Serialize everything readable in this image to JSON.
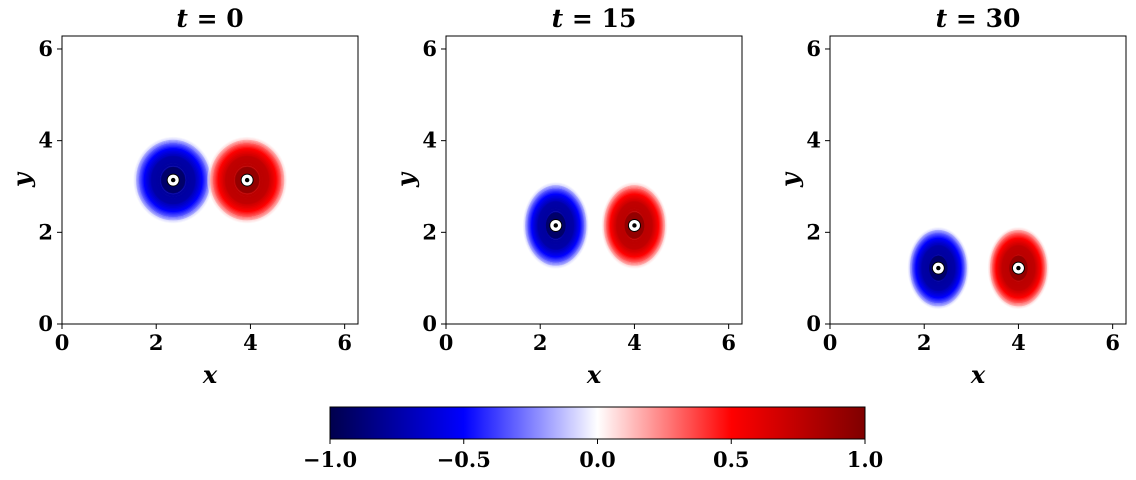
{
  "chart_data": {
    "type": "contour",
    "panels": [
      {
        "title_var": "t",
        "title_eq": " = ",
        "title_value": "0",
        "xlabel": "x",
        "ylabel": "y",
        "xlim": [
          0,
          6.2832
        ],
        "ylim": [
          0,
          6.2832
        ],
        "xticks": [
          "0",
          "2",
          "4",
          "6"
        ],
        "yticks": [
          "0",
          "2",
          "4",
          "6"
        ],
        "vortices": [
          {
            "x": 2.36,
            "y": 3.14,
            "sign": -1,
            "rx": 0.85,
            "ry": 0.95
          },
          {
            "x": 3.93,
            "y": 3.14,
            "sign": 1,
            "rx": 0.85,
            "ry": 0.95
          }
        ]
      },
      {
        "title_var": "t",
        "title_eq": " = ",
        "title_value": "15",
        "xlabel": "x",
        "ylabel": "y",
        "xlim": [
          0,
          6.2832
        ],
        "ylim": [
          0,
          6.2832
        ],
        "xticks": [
          "0",
          "2",
          "4",
          "6"
        ],
        "yticks": [
          "0",
          "2",
          "4",
          "6"
        ],
        "vortices": [
          {
            "x": 2.33,
            "y": 2.15,
            "sign": -1,
            "rx": 0.7,
            "ry": 0.95
          },
          {
            "x": 4.0,
            "y": 2.15,
            "sign": 1,
            "rx": 0.7,
            "ry": 0.95
          }
        ]
      },
      {
        "title_var": "t",
        "title_eq": " = ",
        "title_value": "30",
        "xlabel": "x",
        "ylabel": "y",
        "xlim": [
          0,
          6.2832
        ],
        "ylim": [
          0,
          6.2832
        ],
        "xticks": [
          "0",
          "2",
          "4",
          "6"
        ],
        "yticks": [
          "0",
          "2",
          "4",
          "6"
        ],
        "vortices": [
          {
            "x": 2.3,
            "y": 1.22,
            "sign": -1,
            "rx": 0.65,
            "ry": 0.9
          },
          {
            "x": 4.0,
            "y": 1.22,
            "sign": 1,
            "rx": 0.65,
            "ry": 0.9
          }
        ]
      }
    ],
    "colorbar": {
      "cmap": "seismic",
      "range": [
        -1.0,
        1.0
      ],
      "ticks": [
        -1.0,
        -0.5,
        0.0,
        0.5,
        1.0
      ],
      "tick_labels": [
        "−1.0",
        "−0.5",
        "0.0",
        "0.5",
        "1.0"
      ],
      "colors": [
        "#00004c",
        "#0000ff",
        "#ffffff",
        "#ff0000",
        "#7f0000"
      ]
    },
    "grid": false
  }
}
